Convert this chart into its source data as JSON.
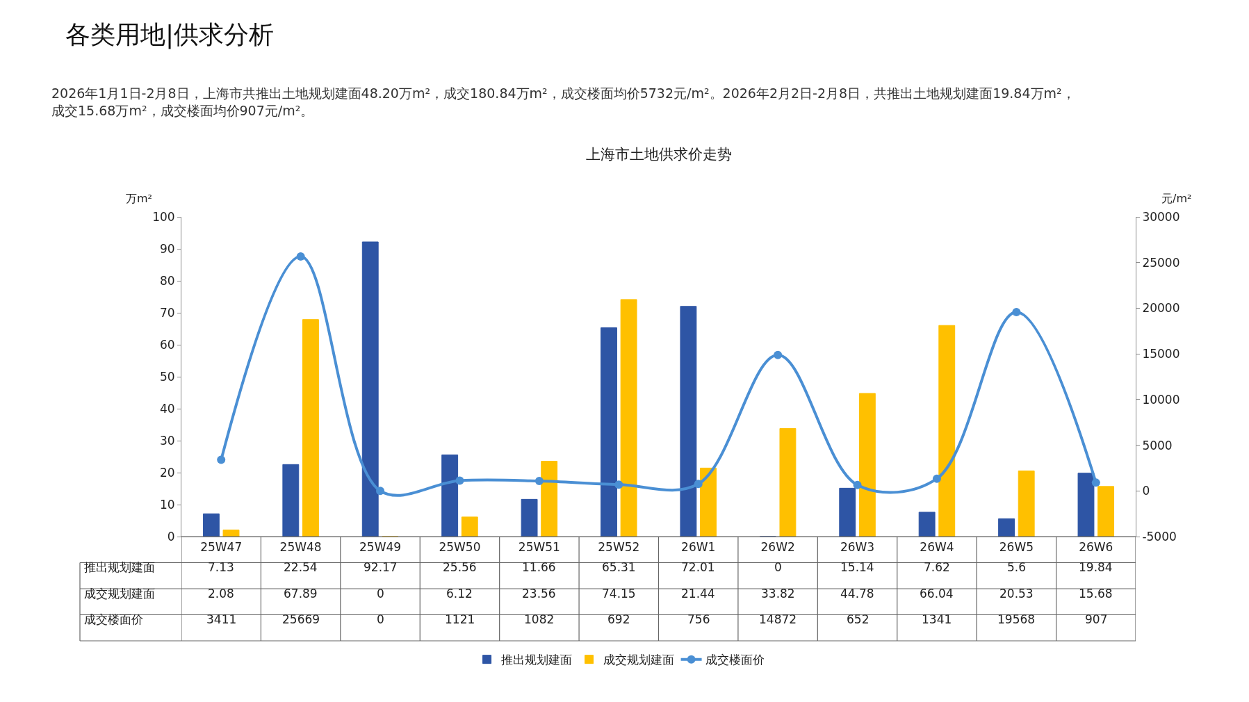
{
  "chart_data": {
    "type": "bar",
    "title": "上海市土地供求价走势",
    "subtitle": "2026年1月1日-2月8日，上海市共推出土地规划建面48.20万m²，成交180.84万m²，成交楼面均价5732元/m²。2026年2月2日-2月8日，共推出土地规划建面19.84万m²，成交15.68万m²，成交楼面均价907元/m²。",
    "annotations": [
      "各类用地|供求分析"
    ],
    "ylabel": "万m²",
    "y2label": "元/m²",
    "categories": [
      "25W47",
      "25W48",
      "25W49",
      "25W50",
      "25W51",
      "25W52",
      "26W1",
      "26W2",
      "26W3",
      "26W4",
      "26W5",
      "26W6"
    ],
    "series": [
      {
        "name": "推出规划建面",
        "color": "#2e55a5",
        "values": [
          7.13,
          22.54,
          92.17,
          25.56,
          11.66,
          65.31,
          72.01,
          0,
          15.14,
          7.62,
          5.6,
          19.84
        ]
      },
      {
        "name": "成交规划建面",
        "color": "#ffc000",
        "values": [
          2.08,
          67.89,
          0,
          6.12,
          23.56,
          74.15,
          21.44,
          33.82,
          44.78,
          66.04,
          20.53,
          15.68
        ]
      },
      {
        "name": "成交楼面价",
        "type": "line",
        "axis": "y2",
        "color": "#4a8fd4",
        "marker": "circle",
        "values": [
          3411,
          25669,
          0,
          1121,
          1082,
          692,
          756,
          14872,
          652,
          1341,
          19568,
          907
        ]
      }
    ],
    "ylim": [
      0,
      100
    ],
    "yticks": [
      0,
      10,
      20,
      30,
      40,
      50,
      60,
      70,
      80,
      90,
      100
    ],
    "y2lim": [
      -5000,
      30000
    ],
    "y2ticks": [
      -5000,
      0,
      5000,
      10000,
      15000,
      20000,
      25000,
      30000
    ],
    "data_labels": true,
    "legend": "bottom"
  }
}
